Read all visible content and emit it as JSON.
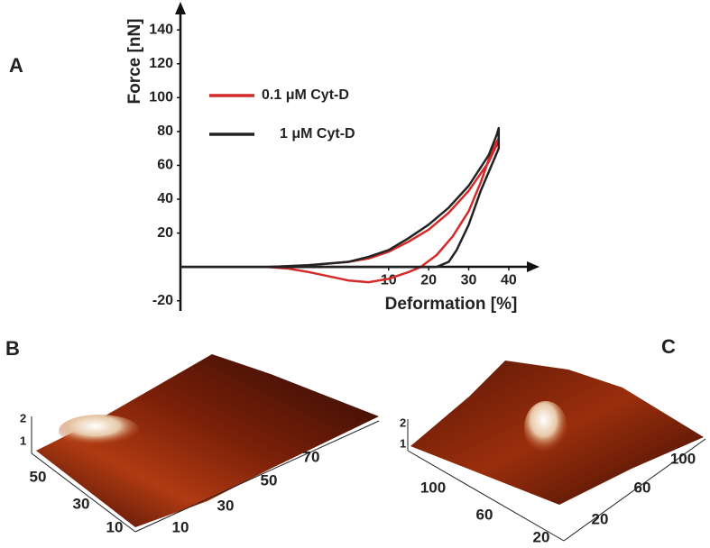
{
  "panel_labels": [
    "A",
    "B",
    "C"
  ],
  "chart_data": {
    "type": "line",
    "xlabel": "Deformation [%]",
    "ylabel": "Force [nN]",
    "xlim": [
      -42,
      47
    ],
    "ylim": [
      -26,
      155
    ],
    "xticks": [
      10,
      20,
      30,
      40
    ],
    "yticks": [
      -20,
      20,
      40,
      60,
      80,
      100,
      120,
      140
    ],
    "legend": "upper left",
    "series": [
      {
        "name": "0.1 μM Cyt-D",
        "color": "#d42a2a",
        "x": [
          -42,
          -20,
          -10,
          0,
          5,
          10,
          15,
          20,
          25,
          30,
          35,
          37,
          37.5,
          36,
          33,
          30,
          26,
          22,
          18,
          15,
          10,
          5,
          0,
          -10,
          -15,
          -20,
          -42
        ],
        "values": [
          0,
          0,
          1,
          3,
          5,
          9,
          15,
          22,
          32,
          45,
          62,
          72,
          76,
          70,
          50,
          33,
          18,
          7,
          0,
          -3,
          -7,
          -9,
          -8,
          -3,
          -1,
          0,
          0
        ]
      },
      {
        "name": "1 μM Cyt-D",
        "color": "#222222",
        "x": [
          -42,
          -20,
          -10,
          0,
          5,
          10,
          15,
          20,
          25,
          30,
          35,
          37,
          37.5,
          37.5,
          33,
          30,
          27,
          25,
          22,
          10,
          -42
        ],
        "values": [
          0,
          0,
          1,
          3,
          6,
          10,
          17,
          25,
          35,
          48,
          66,
          78,
          82,
          70,
          45,
          25,
          10,
          3,
          0,
          0,
          0
        ]
      }
    ]
  },
  "surfaces": [
    {
      "z_ticks": [
        "2",
        "1"
      ],
      "left_ticks": [
        "50",
        "30",
        "10"
      ],
      "right_ticks": [
        "10",
        "30",
        "50",
        "70"
      ]
    },
    {
      "z_ticks": [
        "2",
        "1"
      ],
      "left_ticks": [
        "100",
        "60",
        "20"
      ],
      "right_ticks": [
        "20",
        "60",
        "100"
      ]
    }
  ]
}
